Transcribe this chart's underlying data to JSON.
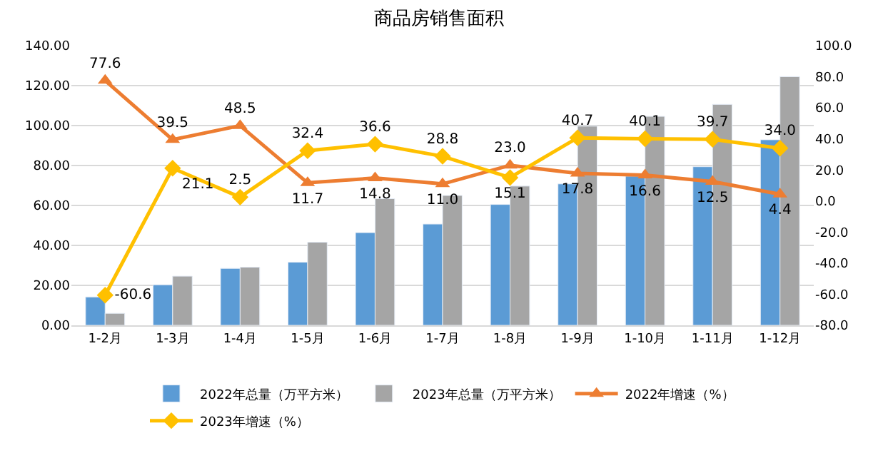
{
  "chart_data": {
    "type": "bar",
    "title": "商品房销售面积",
    "categories": [
      "1-2月",
      "1-3月",
      "1-4月",
      "1-5月",
      "1-6月",
      "1-7月",
      "1-8月",
      "1-9月",
      "1-10月",
      "1-11月",
      "1-12月"
    ],
    "series": [
      {
        "name": "2022年总量（万平方米）",
        "color": "#5b9bd5",
        "values": [
          14.2,
          20.3,
          28.5,
          31.6,
          46.4,
          50.7,
          60.5,
          70.8,
          74.7,
          79.4,
          92.9
        ]
      },
      {
        "name": "2023年总量（万平方米）",
        "color": "#a5a5a5",
        "values": [
          6.0,
          24.6,
          29.1,
          41.6,
          63.4,
          65.0,
          69.7,
          99.7,
          104.6,
          110.6,
          124.5
        ]
      },
      {
        "name": "2022年增速（%）",
        "type": "line",
        "axis": "y2",
        "marker": "triangle",
        "color": "#ed7d31",
        "values": [
          77.6,
          39.5,
          48.5,
          11.7,
          14.8,
          11.0,
          23.0,
          17.8,
          16.6,
          12.5,
          4.4
        ],
        "value_labels": [
          "77.6",
          "39.5",
          "48.5",
          "11.7",
          "14.8",
          "11.0",
          "23.0",
          "17.8",
          "16.6",
          "12.5",
          "4.4"
        ]
      },
      {
        "name": "2023年增速（%）",
        "type": "line",
        "axis": "y2",
        "marker": "diamond",
        "color": "#ffc000",
        "values": [
          -60.6,
          21.1,
          2.5,
          32.4,
          36.6,
          28.8,
          15.1,
          40.7,
          40.1,
          39.7,
          34.0
        ],
        "value_labels": [
          "-60.6",
          "21.1",
          "2.5",
          "32.4",
          "36.6",
          "28.8",
          "15.1",
          "40.7",
          "40.1",
          "39.7",
          "34.0"
        ]
      }
    ],
    "ylim": [
      0,
      140
    ],
    "yticks": [
      {
        "value": 0,
        "label": "0.00"
      },
      {
        "value": 20,
        "label": "20.00"
      },
      {
        "value": 40,
        "label": "40.00"
      },
      {
        "value": 60,
        "label": "60.00"
      },
      {
        "value": 80,
        "label": "80.00"
      },
      {
        "value": 100,
        "label": "100.00"
      },
      {
        "value": 120,
        "label": "120.00"
      },
      {
        "value": 140,
        "label": "140.00"
      }
    ],
    "y2lim": [
      -80,
      100
    ],
    "y2ticks": [
      {
        "value": -80,
        "label": "-80.0"
      },
      {
        "value": -60,
        "label": "-60.0"
      },
      {
        "value": -40,
        "label": "-40.0"
      },
      {
        "value": -20,
        "label": "-20.0"
      },
      {
        "value": 0,
        "label": "0.0"
      },
      {
        "value": 20,
        "label": "20.0"
      },
      {
        "value": 40,
        "label": "40.0"
      },
      {
        "value": 60,
        "label": "60.0"
      },
      {
        "value": 80,
        "label": "80.0"
      },
      {
        "value": 100,
        "label": "100.0"
      }
    ],
    "grid": "y",
    "legend": "bottom"
  }
}
